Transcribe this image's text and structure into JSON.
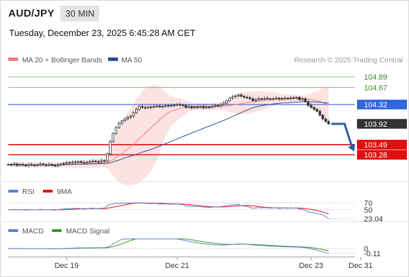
{
  "header": {
    "symbol": "AUD/JPY",
    "timeframe": "30 MIN",
    "timestamp": "Tuesday, December 23, 2025 6:45:28 AM CET"
  },
  "credit": "Research © 2025 Trading Central",
  "colors": {
    "candle": "#2d8a2d",
    "ma20": "#f07c7c",
    "band_fill": "#fde2e2",
    "ma50": "#2b4d8c",
    "resistance": "#7fc47f",
    "pivot": "#3366dd",
    "support": "#e01010",
    "current": "#333333",
    "arrow": "#2b5aa8",
    "rsi": "#5b7fd6",
    "rsi_ma": "#e01010",
    "macd": "#5b7fd6",
    "macd_signal": "#3a9a20"
  },
  "chart_data": [
    {
      "type": "candlestick",
      "name": "price",
      "legend": [
        {
          "label": "MA 20 + Bollinger Bands",
          "color": "#f07c7c"
        },
        {
          "label": "MA 50",
          "color": "#2b4d8c"
        }
      ],
      "ylim": [
        102.9,
        105.05
      ],
      "x_ticks": [
        {
          "label": "Dec 19",
          "index": 20
        },
        {
          "label": "Dec 21",
          "index": 58
        },
        {
          "label": "Dec 23",
          "index": 104
        },
        {
          "label": "Dec 31",
          "index": 121
        }
      ],
      "close": [
        103.08,
        103.07,
        103.09,
        103.06,
        103.08,
        103.07,
        103.05,
        103.08,
        103.07,
        103.06,
        103.07,
        103.09,
        103.07,
        103.06,
        103.08,
        103.06,
        103.05,
        103.07,
        103.09,
        103.1,
        103.12,
        103.11,
        103.13,
        103.12,
        103.14,
        103.12,
        103.11,
        103.13,
        103.14,
        103.15,
        103.14,
        103.13,
        103.16,
        103.15,
        103.3,
        103.55,
        103.72,
        103.84,
        103.93,
        103.98,
        104.02,
        104.05,
        104.08,
        104.15,
        104.22,
        104.28,
        104.26,
        104.25,
        104.27,
        104.26,
        104.28,
        104.29,
        104.27,
        104.28,
        104.3,
        104.29,
        104.3,
        104.31,
        104.32,
        104.31,
        104.3,
        104.26,
        104.28,
        104.25,
        104.27,
        104.26,
        104.28,
        104.25,
        104.27,
        104.26,
        104.28,
        104.3,
        104.29,
        104.32,
        104.35,
        104.4,
        104.45,
        104.48,
        104.5,
        104.52,
        104.49,
        104.47,
        104.46,
        104.44,
        104.4,
        104.42,
        104.44,
        104.43,
        104.45,
        104.44,
        104.43,
        104.44,
        104.45,
        104.43,
        104.44,
        104.45,
        104.44,
        104.46,
        104.45,
        104.47,
        104.42,
        104.44,
        104.38,
        104.3,
        104.26,
        104.22,
        104.18,
        104.1,
        104.02,
        103.97,
        103.92
      ],
      "levels": [
        {
          "label": "104.89",
          "value": 104.89,
          "kind": "resistance"
        },
        {
          "label": "104.67",
          "value": 104.67,
          "kind": "resistance"
        },
        {
          "label": "104.32",
          "value": 104.32,
          "kind": "pivot"
        },
        {
          "label": "103.92",
          "value": 103.92,
          "kind": "current"
        },
        {
          "label": "103.49",
          "value": 103.49,
          "kind": "support"
        },
        {
          "label": "103.28",
          "value": 103.28,
          "kind": "support"
        }
      ],
      "forecast_arrow": {
        "from": 103.92,
        "to": 103.35
      }
    },
    {
      "type": "line",
      "name": "RSI",
      "legend": [
        {
          "label": "RSI",
          "color": "#5b7fd6"
        },
        {
          "label": "9MA",
          "color": "#e01010"
        }
      ],
      "ylim": [
        15,
        80
      ],
      "tick_labels": [
        {
          "label": "70",
          "value": 70
        },
        {
          "label": "50",
          "value": 50
        }
      ],
      "current_label": "23.04",
      "current_value": 23.04
    },
    {
      "type": "line",
      "name": "MACD",
      "legend": [
        {
          "label": "MACD",
          "color": "#5b7fd6"
        },
        {
          "label": "MACD Signal",
          "color": "#3a9a20"
        }
      ],
      "ylim": [
        -0.16,
        0.22
      ],
      "tick_labels": [
        {
          "label": "0",
          "value": 0
        }
      ],
      "current_label": "-0.11",
      "current_value": -0.11
    }
  ]
}
